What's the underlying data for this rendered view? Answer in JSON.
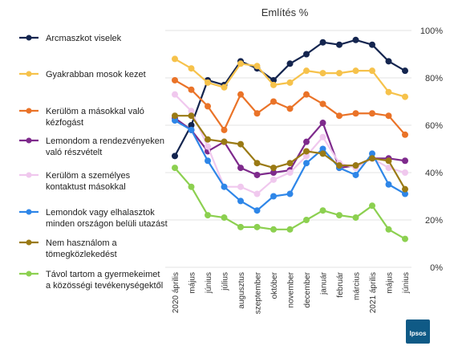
{
  "chart_data": {
    "type": "line",
    "title": "Említés %",
    "categories": [
      "2020 április",
      "május",
      "június",
      "július",
      "augusztus",
      "szeptember",
      "október",
      "november",
      "december",
      "január",
      "február",
      "március",
      "2021 április",
      "május",
      "június"
    ],
    "ylim": [
      0,
      100
    ],
    "yticks": [
      "0%",
      "20%",
      "40%",
      "60%",
      "80%",
      "100%"
    ],
    "ytick_values": [
      0,
      20,
      40,
      60,
      80,
      100
    ],
    "grid": true,
    "legend_position": "left",
    "series": [
      {
        "name": "Arcmaszkot viselek",
        "legend_lines": [
          "Arcmaszkot viselek"
        ],
        "color": "#14254f",
        "values": [
          47,
          60,
          79,
          77,
          87,
          84,
          79,
          86,
          90,
          95,
          94,
          96,
          94,
          87,
          83
        ]
      },
      {
        "name": "Gyakrabban mosok kezet",
        "legend_lines": [
          "Gyakrabban mosok kezet"
        ],
        "color": "#f6c24b",
        "values": [
          88,
          84,
          78,
          76,
          86,
          85,
          77,
          78,
          83,
          82,
          82,
          83,
          83,
          74,
          72
        ]
      },
      {
        "name": "Kerülöm a másokkal való kézfogást",
        "legend_lines": [
          "Kerülöm a másokkal való",
          "kézfogást"
        ],
        "color": "#ea7328",
        "values": [
          79,
          75,
          68,
          58,
          73,
          65,
          70,
          67,
          73,
          69,
          64,
          65,
          65,
          64,
          56
        ]
      },
      {
        "name": "Lemondom a rendezvényeken való részvételt",
        "legend_lines": [
          "Lemondom a rendezvényeken",
          "való részvételt"
        ],
        "color": "#7e2a8c",
        "values": [
          63,
          58,
          49,
          53,
          42,
          39,
          40,
          41,
          53,
          61,
          42,
          43,
          46,
          46,
          45
        ]
      },
      {
        "name": "Kerülöm a személyes kontaktust másokkal",
        "legend_lines": [
          "Kerülöm a személyes",
          "kontaktust másokkal"
        ],
        "color": "#f0c8ee",
        "values": [
          73,
          66,
          51,
          34,
          34,
          31,
          37,
          40,
          47,
          55,
          44,
          42,
          46,
          42,
          40
        ]
      },
      {
        "name": "Lemondok vagy elhalasztok minden országon belüli utazást",
        "legend_lines": [
          "Lemondok vagy elhalasztok",
          "minden országon belüli utazást"
        ],
        "color": "#2e86e8",
        "values": [
          62,
          58,
          45,
          34,
          28,
          24,
          30,
          31,
          44,
          50,
          42,
          39,
          48,
          35,
          31
        ]
      },
      {
        "name": "Nem használom a tömegközlekedést",
        "legend_lines": [
          "Nem használom a",
          "tömegközlekedést"
        ],
        "color": "#9a7a14",
        "values": [
          64,
          64,
          54,
          53,
          52,
          44,
          42,
          44,
          49,
          48,
          43,
          43,
          46,
          45,
          33
        ]
      },
      {
        "name": "Távol tartom a gyermekeimet a közösségi tevékenységektől",
        "legend_lines": [
          "Távol tartom a gyermekeimet",
          "a közösségi tevékenységektől"
        ],
        "color": "#8cd050",
        "values": [
          42,
          34,
          22,
          21,
          17,
          17,
          16,
          16,
          20,
          24,
          22,
          21,
          26,
          16,
          12
        ]
      }
    ]
  },
  "logo": {
    "text": "Ipsos",
    "color": "#0f5a86"
  }
}
